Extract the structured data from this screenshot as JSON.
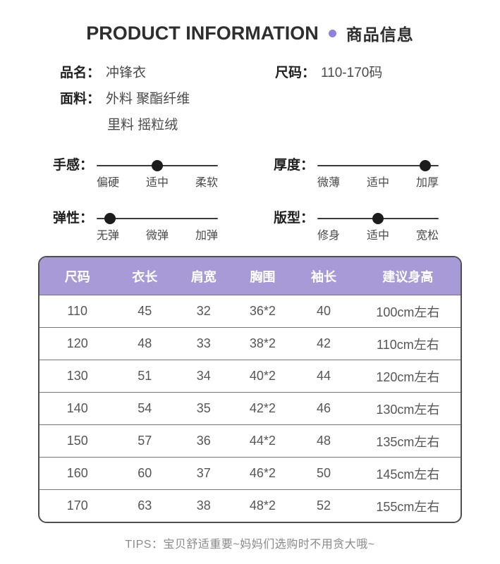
{
  "header": {
    "title_en": "PRODUCT INFORMATION",
    "title_zh": "商品信息"
  },
  "info": {
    "name_label": "品名：",
    "name_value": "冲锋衣",
    "size_label": "尺码：",
    "size_value": "110-170码",
    "fabric_label": "面料：",
    "fabric_line1": "外料 聚酯纤维",
    "fabric_line2": "里料 摇粒绒"
  },
  "sliders": [
    {
      "label": "手感：",
      "options": [
        "偏硬",
        "适中",
        "柔软"
      ],
      "selected_index": 1
    },
    {
      "label": "厚度：",
      "options": [
        "微薄",
        "适中",
        "加厚"
      ],
      "selected_index": 2
    },
    {
      "label": "弹性：",
      "options": [
        "无弹",
        "微弹",
        "加弹"
      ],
      "selected_index": 0
    },
    {
      "label": "版型：",
      "options": [
        "修身",
        "适中",
        "宽松"
      ],
      "selected_index": 1
    }
  ],
  "size_table": {
    "headers": [
      "尺码",
      "衣长",
      "肩宽",
      "胸围",
      "袖长",
      "建议身高"
    ],
    "rows": [
      [
        "110",
        "45",
        "32",
        "36*2",
        "40",
        "100cm左右"
      ],
      [
        "120",
        "48",
        "33",
        "38*2",
        "42",
        "110cm左右"
      ],
      [
        "130",
        "51",
        "34",
        "40*2",
        "44",
        "120cm左右"
      ],
      [
        "140",
        "54",
        "35",
        "42*2",
        "46",
        "130cm左右"
      ],
      [
        "150",
        "57",
        "36",
        "44*2",
        "48",
        "135cm左右"
      ],
      [
        "160",
        "60",
        "37",
        "46*2",
        "50",
        "145cm左右"
      ],
      [
        "170",
        "63",
        "38",
        "48*2",
        "52",
        "155cm左右"
      ]
    ]
  },
  "tips": "TIPS：宝贝舒适重要~妈妈们选购时不用贪大哦~",
  "colors": {
    "accent_purple": "#8d83d8",
    "table_header_bg": "#a89ad6",
    "table_border": "#4f4f4f",
    "row_divider": "#757575",
    "text_dark": "#2e2e2e",
    "text_body": "#4a4a4a",
    "text_muted": "#8a8a8a"
  }
}
